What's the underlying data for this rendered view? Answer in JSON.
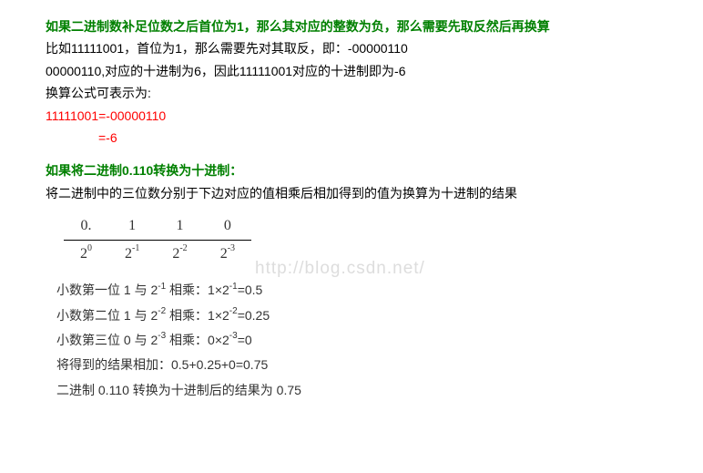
{
  "watermark": "http://blog.csdn.net/",
  "heading1": "如果二进制数补足位数之后首位为1，那么其对应的整数为负，那么需要先取反然后再换算",
  "p1": "比如11111001，首位为1，那么需要先对其取反，即：-00000110",
  "p2": "00000110,对应的十进制为6，因此11111001对应的十进制即为-6",
  "p3": "换算公式可表示为:",
  "formula1": "11111001=-00000110",
  "formula2": "=-6",
  "heading2": "如果将二进制0.110转换为十进制：",
  "p4": "将二进制中的三位数分别于下边对应的值相乘后相加得到的值为换算为十进制的结果",
  "table": {
    "row1": [
      "0.",
      "1",
      "1",
      "0"
    ],
    "row2_base": [
      "2",
      "2",
      "2",
      "2"
    ],
    "row2_exp": [
      "0",
      "-1",
      "-2",
      "-3"
    ]
  },
  "calc": {
    "line1_pre": "小数第一位 1 与 2",
    "line1_exp": "-1",
    "line1_mid": " 相乘：1×2",
    "line1_exp2": "-1",
    "line1_post": "=0.5",
    "line2_pre": "小数第二位 1 与 2",
    "line2_exp": "-2",
    "line2_mid": " 相乘：1×2",
    "line2_exp2": "-2",
    "line2_post": "=0.25",
    "line3_pre": "小数第三位 0 与 2",
    "line3_exp": "-3",
    "line3_mid": " 相乘：0×2",
    "line3_exp2": "-3",
    "line3_post": "=0",
    "line4": "将得到的结果相加：0.5+0.25+0=0.75",
    "line5": "二进制 0.110 转换为十进制后的结果为 0.75"
  }
}
